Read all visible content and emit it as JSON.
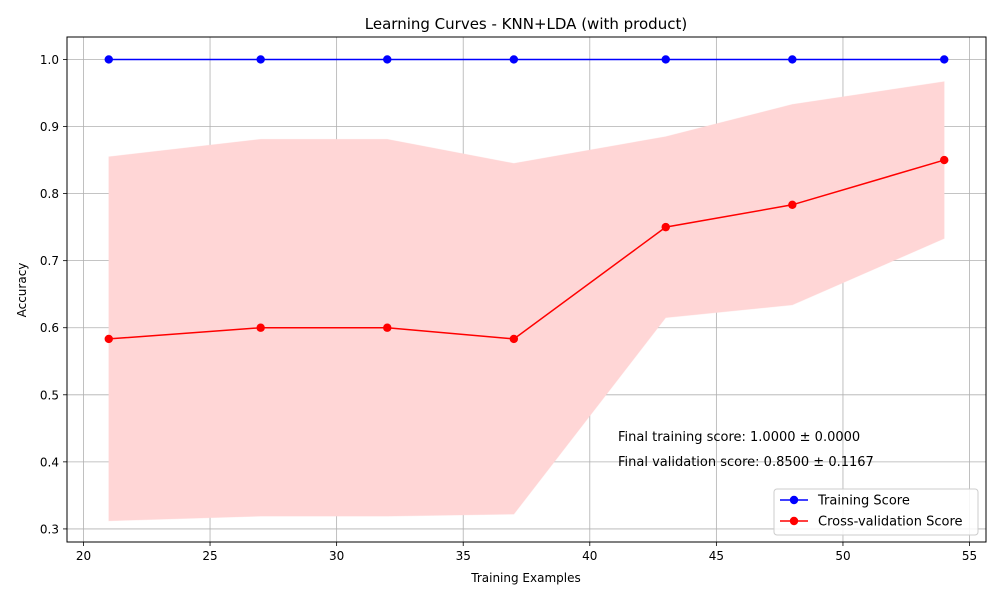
{
  "chart_data": {
    "type": "line",
    "title": "Learning Curves - KNN+LDA (with product)",
    "xlabel": "Training Examples",
    "ylabel": "Accuracy",
    "xlim": [
      19.35,
      55.65
    ],
    "ylim": [
      0.2805,
      1.0335
    ],
    "xticks": [
      20,
      25,
      30,
      35,
      40,
      45,
      50,
      55
    ],
    "yticks": [
      0.3,
      0.4,
      0.5,
      0.6,
      0.7,
      0.8,
      0.9,
      1.0
    ],
    "grid": true,
    "x": [
      21,
      27,
      32,
      37,
      43,
      48,
      54
    ],
    "series": [
      {
        "name": "Training Score",
        "color": "#0000ff",
        "marker": "circle",
        "values": [
          1.0,
          1.0,
          1.0,
          1.0,
          1.0,
          1.0,
          1.0
        ],
        "band_upper": [
          1.0,
          1.0,
          1.0,
          1.0,
          1.0,
          1.0,
          1.0
        ],
        "band_lower": [
          1.0,
          1.0,
          1.0,
          1.0,
          1.0,
          1.0,
          1.0
        ]
      },
      {
        "name": "Cross-validation Score",
        "color": "#ff0000",
        "marker": "circle",
        "values": [
          0.5833,
          0.6,
          0.6,
          0.5833,
          0.75,
          0.7833,
          0.85
        ],
        "band_color": "#ffd6d6",
        "band_upper": [
          0.855,
          0.881,
          0.881,
          0.845,
          0.885,
          0.933,
          0.967
        ],
        "band_lower": [
          0.312,
          0.319,
          0.319,
          0.322,
          0.615,
          0.634,
          0.733
        ]
      }
    ],
    "annotations": [
      "Final training score: 1.0000 ± 0.0000",
      "Final validation score: 0.8500 ± 0.1167"
    ],
    "legend_position": "lower-right"
  }
}
